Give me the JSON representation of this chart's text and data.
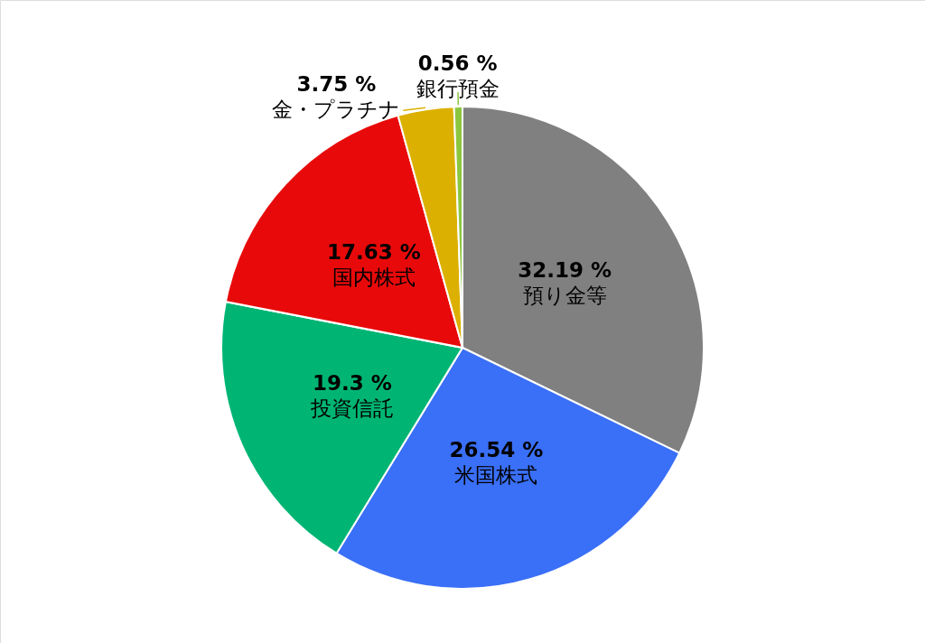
{
  "chart_data": {
    "type": "pie",
    "categories": [
      "預り金等",
      "米国株式",
      "投資信託",
      "国内株式",
      "金・プラチナ",
      "銀行預金"
    ],
    "values": [
      32.19,
      26.54,
      19.3,
      17.63,
      3.75,
      0.56
    ],
    "colors": [
      "#808080",
      "#3a6ff7",
      "#00b574",
      "#e80a0a",
      "#dcb000",
      "#8cc63f"
    ],
    "value_labels": [
      "32.19 %",
      "26.54 %",
      "19.3 %",
      "17.63 %",
      "3.75 %",
      "0.56 %"
    ],
    "legend": false
  }
}
